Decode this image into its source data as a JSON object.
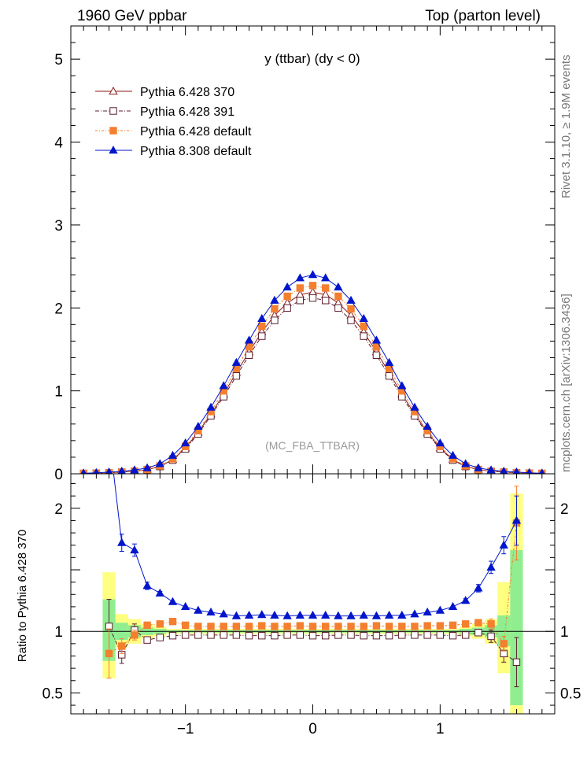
{
  "header": {
    "left": "1960 GeV ppbar",
    "right": "Top (parton level)"
  },
  "side_labels": {
    "rivet": "Rivet 3.1.10, ≥ 1.9M events",
    "mcplots": "mcplots.cern.ch [arXiv:1306.3436]"
  },
  "colors": {
    "p6_370": "#8b1a1a",
    "p6_391": "#5a1f2e",
    "p6_default": "#f47f2f",
    "p8_default": "#0015cc",
    "band_green": "#90ee90",
    "band_yellow": "#ffff80"
  },
  "chart_data": [
    {
      "type": "line",
      "title": "y (ttbar) (dy < 0)",
      "watermark": "(MC_FBA_TTBAR)",
      "xlabel": "",
      "ylabel": "",
      "xlim": [
        -1.9,
        1.9
      ],
      "ylim": [
        0,
        5.4
      ],
      "yticks": [
        0,
        1,
        2,
        3,
        4,
        5
      ],
      "xticks": [
        -1,
        0,
        1
      ],
      "legend_position": "top-left",
      "x": [
        -1.8,
        -1.7,
        -1.6,
        -1.5,
        -1.4,
        -1.3,
        -1.2,
        -1.1,
        -1.0,
        -0.9,
        -0.8,
        -0.7,
        -0.6,
        -0.5,
        -0.4,
        -0.3,
        -0.2,
        -0.1,
        0.0,
        0.1,
        0.2,
        0.3,
        0.4,
        0.5,
        0.6,
        0.7,
        0.8,
        0.9,
        1.0,
        1.1,
        1.2,
        1.3,
        1.4,
        1.5,
        1.6,
        1.7,
        1.8
      ],
      "series": [
        {
          "name": "Pythia 6.428 370",
          "marker": "triangle-open",
          "values": [
            0.004,
            0.008,
            0.012,
            0.02,
            0.03,
            0.05,
            0.09,
            0.17,
            0.31,
            0.5,
            0.72,
            0.96,
            1.22,
            1.47,
            1.71,
            1.91,
            2.06,
            2.16,
            2.19,
            2.16,
            2.06,
            1.91,
            1.71,
            1.47,
            1.22,
            0.96,
            0.72,
            0.5,
            0.31,
            0.17,
            0.09,
            0.05,
            0.03,
            0.02,
            0.012,
            0.008,
            0.004
          ]
        },
        {
          "name": "Pythia 6.428 391",
          "marker": "square-open",
          "values": [
            0.004,
            0.008,
            0.012,
            0.02,
            0.03,
            0.05,
            0.088,
            0.165,
            0.3,
            0.48,
            0.7,
            0.93,
            1.18,
            1.43,
            1.66,
            1.85,
            2.0,
            2.09,
            2.12,
            2.09,
            2.0,
            1.85,
            1.66,
            1.43,
            1.18,
            0.93,
            0.7,
            0.48,
            0.3,
            0.165,
            0.088,
            0.05,
            0.03,
            0.02,
            0.012,
            0.008,
            0.004
          ]
        },
        {
          "name": "Pythia 6.428 default",
          "marker": "square-filled",
          "values": [
            0.004,
            0.008,
            0.012,
            0.02,
            0.03,
            0.052,
            0.095,
            0.18,
            0.33,
            0.52,
            0.75,
            1.0,
            1.27,
            1.53,
            1.78,
            1.99,
            2.14,
            2.24,
            2.27,
            2.24,
            2.14,
            1.99,
            1.78,
            1.53,
            1.27,
            1.0,
            0.75,
            0.52,
            0.33,
            0.18,
            0.095,
            0.052,
            0.03,
            0.02,
            0.012,
            0.008,
            0.004
          ]
        },
        {
          "name": "Pythia 8.308 default",
          "marker": "triangle-filled",
          "values": [
            0.006,
            0.012,
            0.02,
            0.03,
            0.045,
            0.07,
            0.12,
            0.22,
            0.37,
            0.57,
            0.8,
            1.06,
            1.34,
            1.61,
            1.87,
            2.09,
            2.25,
            2.36,
            2.4,
            2.36,
            2.25,
            2.09,
            1.87,
            1.61,
            1.34,
            1.06,
            0.8,
            0.57,
            0.37,
            0.22,
            0.12,
            0.07,
            0.045,
            0.03,
            0.02,
            0.012,
            0.006
          ]
        }
      ]
    },
    {
      "type": "line",
      "title": "",
      "xlabel": "",
      "ylabel": "Ratio to Pythia 6.428 370",
      "xlim": [
        -1.9,
        1.9
      ],
      "ylim": [
        0.33,
        2.28
      ],
      "yticks": [
        0.5,
        1,
        2
      ],
      "xticks": [
        -1,
        0,
        1
      ],
      "reference_line": 1,
      "bands": {
        "x_edges": [
          -1.65,
          -1.55,
          -1.45,
          -1.35,
          -1.25,
          -1.15,
          1.15,
          1.25,
          1.35,
          1.45,
          1.55,
          1.65
        ],
        "green": [
          [
            0.76,
            1.26
          ],
          [
            0.93,
            1.07
          ],
          [
            0.95,
            1.05
          ],
          [
            0.97,
            1.03
          ],
          [
            0.98,
            1.02
          ],
          [
            0.99,
            1.01
          ],
          [
            0.98,
            1.02
          ],
          [
            0.97,
            1.03
          ],
          [
            0.95,
            1.05
          ],
          [
            0.88,
            1.13
          ],
          [
            0.4,
            1.66
          ]
        ],
        "yellow": [
          [
            0.62,
            1.48
          ],
          [
            0.87,
            1.14
          ],
          [
            0.9,
            1.1
          ],
          [
            0.94,
            1.06
          ],
          [
            0.96,
            1.04
          ],
          [
            0.98,
            1.02
          ],
          [
            0.96,
            1.04
          ],
          [
            0.94,
            1.06
          ],
          [
            0.9,
            1.1
          ],
          [
            0.66,
            1.4
          ],
          [
            0.33,
            2.12
          ]
        ]
      },
      "x": [
        -1.6,
        -1.5,
        -1.4,
        -1.3,
        -1.2,
        -1.1,
        -1.0,
        -0.9,
        -0.8,
        -0.7,
        -0.6,
        -0.5,
        -0.4,
        -0.3,
        -0.2,
        -0.1,
        0.0,
        0.1,
        0.2,
        0.3,
        0.4,
        0.5,
        0.6,
        0.7,
        0.8,
        0.9,
        1.0,
        1.1,
        1.2,
        1.3,
        1.4,
        1.5,
        1.6
      ],
      "series": [
        {
          "name": "Pythia 6.428 391",
          "marker": "square-open",
          "values": [
            1.04,
            0.81,
            1.01,
            0.93,
            0.95,
            0.965,
            0.97,
            0.97,
            0.97,
            0.97,
            0.97,
            0.965,
            0.965,
            0.965,
            0.97,
            0.97,
            0.965,
            0.965,
            0.97,
            0.97,
            0.965,
            0.965,
            0.965,
            0.97,
            0.97,
            0.97,
            0.97,
            0.965,
            0.97,
            0.99,
            0.96,
            0.82,
            0.75
          ],
          "errors": [
            0.22,
            0.07,
            0.05,
            0.02,
            0.01,
            0.01,
            0.005,
            0.005,
            0.005,
            0.005,
            0.005,
            0.005,
            0.005,
            0.005,
            0.005,
            0.005,
            0.005,
            0.005,
            0.005,
            0.005,
            0.005,
            0.005,
            0.005,
            0.005,
            0.005,
            0.005,
            0.005,
            0.01,
            0.01,
            0.02,
            0.05,
            0.07,
            0.2
          ]
        },
        {
          "name": "Pythia 6.428 default",
          "marker": "square-filled",
          "values": [
            0.82,
            0.88,
            0.97,
            1.05,
            1.06,
            1.08,
            1.05,
            1.04,
            1.04,
            1.04,
            1.04,
            1.04,
            1.045,
            1.04,
            1.04,
            1.045,
            1.04,
            1.04,
            1.04,
            1.04,
            1.04,
            1.045,
            1.04,
            1.04,
            1.04,
            1.045,
            1.045,
            1.05,
            1.06,
            1.07,
            1.06,
            0.9,
            1.88
          ],
          "errors": [
            0.2,
            0.06,
            0.04,
            0.02,
            0.01,
            0.01,
            0.005,
            0.005,
            0.005,
            0.005,
            0.005,
            0.005,
            0.005,
            0.005,
            0.005,
            0.005,
            0.005,
            0.005,
            0.005,
            0.005,
            0.005,
            0.005,
            0.005,
            0.005,
            0.005,
            0.005,
            0.005,
            0.01,
            0.01,
            0.02,
            0.04,
            0.06,
            0.3
          ]
        },
        {
          "name": "Pythia 8.308 default",
          "marker": "triangle-filled",
          "values": [
            2.6,
            1.72,
            1.66,
            1.37,
            1.31,
            1.24,
            1.2,
            1.17,
            1.155,
            1.14,
            1.125,
            1.13,
            1.135,
            1.13,
            1.125,
            1.13,
            1.13,
            1.13,
            1.125,
            1.125,
            1.13,
            1.125,
            1.13,
            1.13,
            1.14,
            1.155,
            1.17,
            1.2,
            1.25,
            1.35,
            1.52,
            1.7,
            1.9
          ],
          "errors": [
            0.2,
            0.07,
            0.05,
            0.03,
            0.015,
            0.01,
            0.005,
            0.005,
            0.005,
            0.005,
            0.005,
            0.005,
            0.005,
            0.005,
            0.005,
            0.005,
            0.005,
            0.005,
            0.005,
            0.005,
            0.005,
            0.005,
            0.005,
            0.005,
            0.005,
            0.005,
            0.005,
            0.01,
            0.015,
            0.03,
            0.05,
            0.07,
            0.2
          ]
        }
      ]
    }
  ]
}
